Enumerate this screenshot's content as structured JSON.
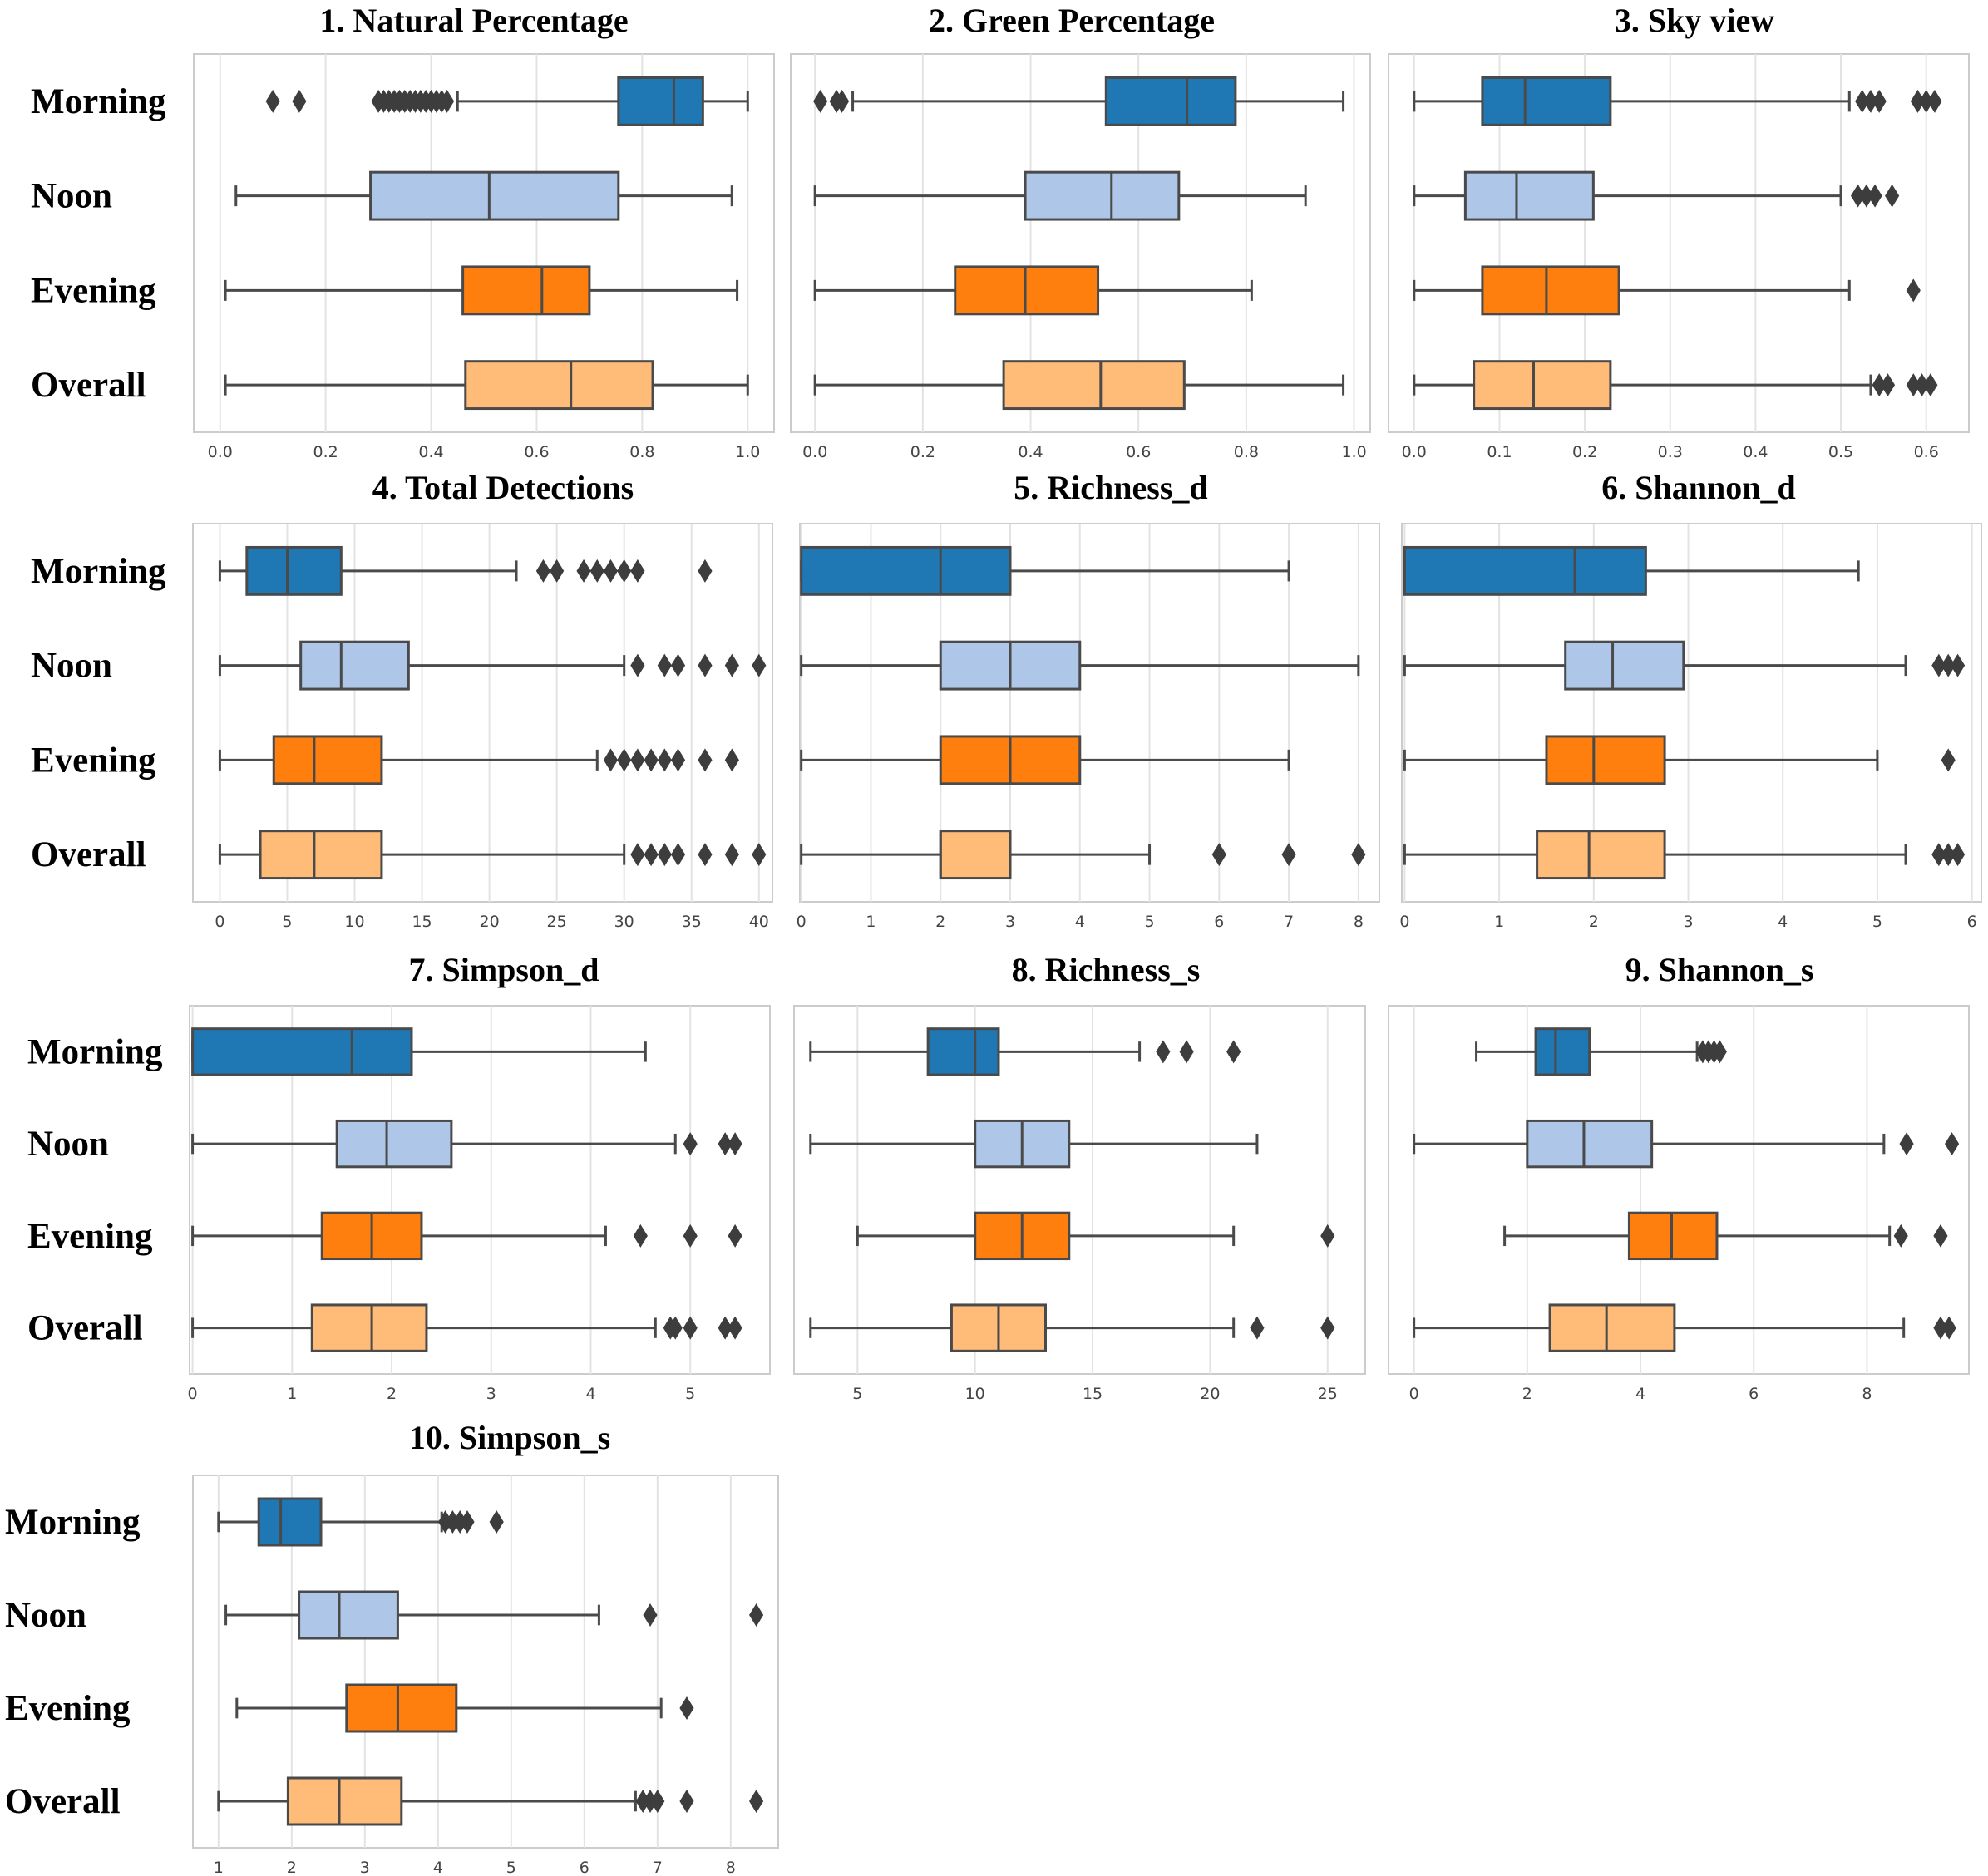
{
  "colors": {
    "Morning": "#1f77b4",
    "Noon": "#aec7e8",
    "Evening": "#ff7f0e",
    "Overall": "#ffbb78"
  },
  "chart_data": [
    {
      "type": "boxplot",
      "orientation": "horizontal",
      "title": "1. Natural Percentage",
      "categories": [
        "Morning",
        "Noon",
        "Evening",
        "Overall"
      ],
      "xlim": [
        -0.05,
        1.05
      ],
      "ticks": [
        0.0,
        0.2,
        0.4,
        0.6,
        0.8,
        1.0
      ],
      "tick_labels": [
        "0.0",
        "0.2",
        "0.4",
        "0.6",
        "0.8",
        "1.0"
      ],
      "boxes": [
        {
          "whisker_low": 0.45,
          "q1": 0.755,
          "median": 0.86,
          "q3": 0.915,
          "whisker_high": 1.0,
          "outliers": [
            0.1,
            0.15,
            0.3,
            0.31,
            0.32,
            0.33,
            0.34,
            0.35,
            0.36,
            0.37,
            0.38,
            0.39,
            0.4,
            0.41,
            0.42,
            0.43
          ]
        },
        {
          "whisker_low": 0.03,
          "q1": 0.285,
          "median": 0.51,
          "q3": 0.755,
          "whisker_high": 0.97,
          "outliers": []
        },
        {
          "whisker_low": 0.01,
          "q1": 0.46,
          "median": 0.61,
          "q3": 0.7,
          "whisker_high": 0.98,
          "outliers": []
        },
        {
          "whisker_low": 0.01,
          "q1": 0.465,
          "median": 0.665,
          "q3": 0.82,
          "whisker_high": 1.0,
          "outliers": []
        }
      ]
    },
    {
      "type": "boxplot",
      "orientation": "horizontal",
      "title": "2. Green Percentage",
      "categories": [
        "Morning",
        "Noon",
        "Evening",
        "Overall"
      ],
      "xlim": [
        -0.045,
        1.03
      ],
      "ticks": [
        0.0,
        0.2,
        0.4,
        0.6,
        0.8,
        1.0
      ],
      "tick_labels": [
        "0.0",
        "0.2",
        "0.4",
        "0.6",
        "0.8",
        "1.0"
      ],
      "boxes": [
        {
          "whisker_low": 0.07,
          "q1": 0.54,
          "median": 0.69,
          "q3": 0.78,
          "whisker_high": 0.98,
          "outliers": [
            0.01,
            0.04,
            0.05
          ]
        },
        {
          "whisker_low": 0.0,
          "q1": 0.39,
          "median": 0.55,
          "q3": 0.675,
          "whisker_high": 0.91,
          "outliers": []
        },
        {
          "whisker_low": 0.0,
          "q1": 0.26,
          "median": 0.39,
          "q3": 0.525,
          "whisker_high": 0.81,
          "outliers": []
        },
        {
          "whisker_low": 0.0,
          "q1": 0.35,
          "median": 0.53,
          "q3": 0.685,
          "whisker_high": 0.98,
          "outliers": []
        }
      ]
    },
    {
      "type": "boxplot",
      "orientation": "horizontal",
      "title": "3. Sky view",
      "categories": [
        "Morning",
        "Noon",
        "Evening",
        "Overall"
      ],
      "xlim": [
        -0.03,
        0.65
      ],
      "ticks": [
        0.0,
        0.1,
        0.2,
        0.3,
        0.4,
        0.5,
        0.6
      ],
      "tick_labels": [
        "0.0",
        "0.1",
        "0.2",
        "0.3",
        "0.4",
        "0.5",
        "0.6"
      ],
      "boxes": [
        {
          "whisker_low": 0.0,
          "q1": 0.08,
          "median": 0.13,
          "q3": 0.23,
          "whisker_high": 0.51,
          "outliers": [
            0.525,
            0.535,
            0.545,
            0.59,
            0.6,
            0.61
          ]
        },
        {
          "whisker_low": 0.0,
          "q1": 0.06,
          "median": 0.12,
          "q3": 0.21,
          "whisker_high": 0.5,
          "outliers": [
            0.52,
            0.53,
            0.54,
            0.56
          ]
        },
        {
          "whisker_low": 0.0,
          "q1": 0.08,
          "median": 0.155,
          "q3": 0.24,
          "whisker_high": 0.51,
          "outliers": [
            0.585
          ]
        },
        {
          "whisker_low": 0.0,
          "q1": 0.07,
          "median": 0.14,
          "q3": 0.23,
          "whisker_high": 0.535,
          "outliers": [
            0.545,
            0.555,
            0.585,
            0.595,
            0.605
          ]
        }
      ]
    },
    {
      "type": "boxplot",
      "orientation": "horizontal",
      "title": "4. Total Detections",
      "categories": [
        "Morning",
        "Noon",
        "Evening",
        "Overall"
      ],
      "xlim": [
        -2,
        41
      ],
      "ticks": [
        0,
        5,
        10,
        15,
        20,
        25,
        30,
        35,
        40
      ],
      "tick_labels": [
        "0",
        "5",
        "10",
        "15",
        "20",
        "25",
        "30",
        "35",
        "40"
      ],
      "boxes": [
        {
          "whisker_low": 0,
          "q1": 2,
          "median": 5,
          "q3": 9,
          "whisker_high": 22,
          "outliers": [
            24,
            25,
            27,
            28,
            29,
            30,
            31,
            36
          ]
        },
        {
          "whisker_low": 0,
          "q1": 6,
          "median": 9,
          "q3": 14,
          "whisker_high": 30,
          "outliers": [
            31,
            33,
            34,
            36,
            38,
            40
          ]
        },
        {
          "whisker_low": 0,
          "q1": 4,
          "median": 7,
          "q3": 12,
          "whisker_high": 28,
          "outliers": [
            29,
            30,
            31,
            32,
            33,
            34,
            36,
            38
          ]
        },
        {
          "whisker_low": 0,
          "q1": 3,
          "median": 7,
          "q3": 12,
          "whisker_high": 30,
          "outliers": [
            31,
            32,
            33,
            34,
            36,
            38,
            40
          ]
        }
      ]
    },
    {
      "type": "boxplot",
      "orientation": "horizontal",
      "title": "5. Richness_d",
      "categories": [
        "Morning",
        "Noon",
        "Evening",
        "Overall"
      ],
      "xlim": [
        -0.02,
        8.3
      ],
      "ticks": [
        0,
        1,
        2,
        3,
        4,
        5,
        6,
        7,
        8
      ],
      "tick_labels": [
        "0",
        "1",
        "2",
        "3",
        "4",
        "5",
        "6",
        "7",
        "8"
      ],
      "boxes": [
        {
          "whisker_low": 0,
          "q1": 0,
          "median": 2,
          "q3": 3,
          "whisker_high": 7,
          "outliers": []
        },
        {
          "whisker_low": 0,
          "q1": 2,
          "median": 3,
          "q3": 4,
          "whisker_high": 8,
          "outliers": []
        },
        {
          "whisker_low": 0,
          "q1": 2,
          "median": 3,
          "q3": 4,
          "whisker_high": 7,
          "outliers": []
        },
        {
          "whisker_low": 0,
          "q1": 2,
          "median": 2,
          "q3": 3,
          "whisker_high": 5,
          "outliers": [
            6,
            7,
            8
          ]
        }
      ]
    },
    {
      "type": "boxplot",
      "orientation": "horizontal",
      "title": "6. Shannon_d",
      "categories": [
        "Morning",
        "Noon",
        "Evening",
        "Overall"
      ],
      "xlim": [
        -0.03,
        6.1
      ],
      "ticks": [
        0,
        1,
        2,
        3,
        4,
        5,
        6
      ],
      "tick_labels": [
        "0",
        "1",
        "2",
        "3",
        "4",
        "5",
        "6"
      ],
      "boxes": [
        {
          "whisker_low": 0,
          "q1": 0,
          "median": 1.8,
          "q3": 2.55,
          "whisker_high": 4.8,
          "outliers": []
        },
        {
          "whisker_low": 0,
          "q1": 1.7,
          "median": 2.2,
          "q3": 2.95,
          "whisker_high": 5.3,
          "outliers": [
            5.65,
            5.75,
            5.85
          ]
        },
        {
          "whisker_low": 0,
          "q1": 1.5,
          "median": 2.0,
          "q3": 2.75,
          "whisker_high": 5.0,
          "outliers": [
            5.75
          ]
        },
        {
          "whisker_low": 0,
          "q1": 1.4,
          "median": 1.95,
          "q3": 2.75,
          "whisker_high": 5.3,
          "outliers": [
            5.65,
            5.75,
            5.85
          ]
        }
      ]
    },
    {
      "type": "boxplot",
      "orientation": "horizontal",
      "title": "7. Simpson_d",
      "categories": [
        "Morning",
        "Noon",
        "Evening",
        "Overall"
      ],
      "xlim": [
        -0.03,
        5.8
      ],
      "ticks": [
        0,
        1,
        2,
        3,
        4,
        5
      ],
      "tick_labels": [
        "0",
        "1",
        "2",
        "3",
        "4",
        "5"
      ],
      "boxes": [
        {
          "whisker_low": 0,
          "q1": 0,
          "median": 1.6,
          "q3": 2.2,
          "whisker_high": 4.55,
          "outliers": []
        },
        {
          "whisker_low": 0,
          "q1": 1.45,
          "median": 1.95,
          "q3": 2.6,
          "whisker_high": 4.85,
          "outliers": [
            5.0,
            5.35,
            5.45
          ]
        },
        {
          "whisker_low": 0,
          "q1": 1.3,
          "median": 1.8,
          "q3": 2.3,
          "whisker_high": 4.15,
          "outliers": [
            4.5,
            5.0,
            5.45
          ]
        },
        {
          "whisker_low": 0,
          "q1": 1.2,
          "median": 1.8,
          "q3": 2.35,
          "whisker_high": 4.65,
          "outliers": [
            4.8,
            4.85,
            5.0,
            5.35,
            5.45
          ]
        }
      ]
    },
    {
      "type": "boxplot",
      "orientation": "horizontal",
      "title": "8. Richness_s",
      "categories": [
        "Morning",
        "Noon",
        "Evening",
        "Overall"
      ],
      "xlim": [
        2.3,
        26.6
      ],
      "ticks": [
        5,
        10,
        15,
        20,
        25
      ],
      "tick_labels": [
        "5",
        "10",
        "15",
        "20",
        "25"
      ],
      "boxes": [
        {
          "whisker_low": 3,
          "q1": 8,
          "median": 10,
          "q3": 11,
          "whisker_high": 17,
          "outliers": [
            18,
            19,
            21
          ]
        },
        {
          "whisker_low": 3,
          "q1": 10,
          "median": 12,
          "q3": 14,
          "whisker_high": 22,
          "outliers": []
        },
        {
          "whisker_low": 5,
          "q1": 10,
          "median": 12,
          "q3": 14,
          "whisker_high": 21,
          "outliers": [
            25
          ]
        },
        {
          "whisker_low": 3,
          "q1": 9,
          "median": 11,
          "q3": 13,
          "whisker_high": 21,
          "outliers": [
            22,
            25
          ]
        }
      ]
    },
    {
      "type": "boxplot",
      "orientation": "horizontal",
      "title": "9. Shannon_s",
      "categories": [
        "Morning",
        "Noon",
        "Evening",
        "Overall"
      ],
      "xlim": [
        -0.45,
        9.8
      ],
      "ticks": [
        0,
        2,
        4,
        6,
        8
      ],
      "tick_labels": [
        "0",
        "2",
        "4",
        "6",
        "8"
      ],
      "boxes": [
        {
          "whisker_low": 1.1,
          "q1": 2.15,
          "median": 2.5,
          "q3": 3.1,
          "whisker_high": 5.0,
          "outliers": [
            5.1,
            5.2,
            5.3,
            5.4
          ]
        },
        {
          "whisker_low": 0,
          "q1": 2.0,
          "median": 3.0,
          "q3": 4.2,
          "whisker_high": 8.3,
          "outliers": [
            8.7,
            9.5
          ]
        },
        {
          "whisker_low": 1.6,
          "q1": 3.8,
          "median": 4.55,
          "q3": 5.35,
          "whisker_high": 8.4,
          "outliers": [
            8.6,
            9.3
          ]
        },
        {
          "whisker_low": 0,
          "q1": 2.4,
          "median": 3.4,
          "q3": 4.6,
          "whisker_high": 8.65,
          "outliers": [
            9.3,
            9.45
          ]
        }
      ]
    },
    {
      "type": "boxplot",
      "orientation": "horizontal",
      "title": "10. Simpson_s",
      "categories": [
        "Morning",
        "Noon",
        "Evening",
        "Overall"
      ],
      "xlim": [
        0.65,
        8.65
      ],
      "ticks": [
        1,
        2,
        3,
        4,
        5,
        6,
        7,
        8
      ],
      "tick_labels": [
        "1",
        "2",
        "3",
        "4",
        "5",
        "6",
        "7",
        "8"
      ],
      "boxes": [
        {
          "whisker_low": 1.0,
          "q1": 1.55,
          "median": 1.85,
          "q3": 2.4,
          "whisker_high": 4.05,
          "outliers": [
            4.1,
            4.2,
            4.3,
            4.4,
            4.8
          ]
        },
        {
          "whisker_low": 1.1,
          "q1": 2.1,
          "median": 2.65,
          "q3": 3.45,
          "whisker_high": 6.2,
          "outliers": [
            6.9,
            8.35
          ]
        },
        {
          "whisker_low": 1.25,
          "q1": 2.75,
          "median": 3.45,
          "q3": 4.25,
          "whisker_high": 7.05,
          "outliers": [
            7.4
          ]
        },
        {
          "whisker_low": 1.0,
          "q1": 1.95,
          "median": 2.65,
          "q3": 3.5,
          "whisker_high": 6.7,
          "outliers": [
            6.8,
            6.9,
            7.0,
            7.4,
            8.35
          ]
        }
      ]
    }
  ]
}
